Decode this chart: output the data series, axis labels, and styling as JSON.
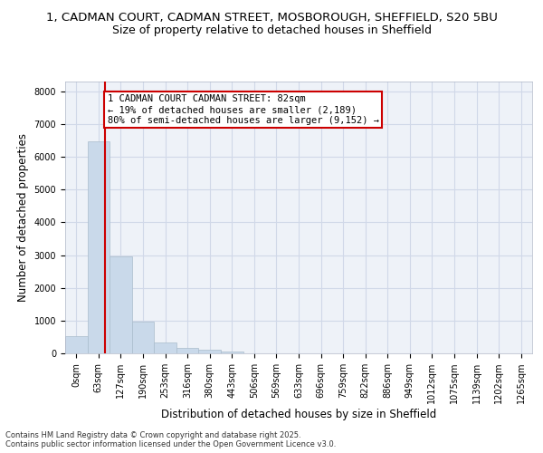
{
  "title_line1": "1, CADMAN COURT, CADMAN STREET, MOSBOROUGH, SHEFFIELD, S20 5BU",
  "title_line2": "Size of property relative to detached houses in Sheffield",
  "xlabel": "Distribution of detached houses by size in Sheffield",
  "ylabel": "Number of detached properties",
  "bar_labels": [
    "0sqm",
    "63sqm",
    "127sqm",
    "190sqm",
    "253sqm",
    "316sqm",
    "380sqm",
    "443sqm",
    "506sqm",
    "569sqm",
    "633sqm",
    "696sqm",
    "759sqm",
    "822sqm",
    "886sqm",
    "949sqm",
    "1012sqm",
    "1075sqm",
    "1139sqm",
    "1202sqm",
    "1265sqm"
  ],
  "bar_values": [
    530,
    6480,
    2970,
    960,
    330,
    155,
    105,
    60,
    0,
    0,
    0,
    0,
    0,
    0,
    0,
    0,
    0,
    0,
    0,
    0,
    0
  ],
  "bar_color": "#c9d9ea",
  "bar_edge_color": "#aabccc",
  "grid_color": "#d0d8e8",
  "background_color": "#eef2f8",
  "vline_x": 1.3,
  "vline_color": "#cc0000",
  "annotation_text": "1 CADMAN COURT CADMAN STREET: 82sqm\n← 19% of detached houses are smaller (2,189)\n80% of semi-detached houses are larger (9,152) →",
  "annotation_box_color": "#ffffff",
  "annotation_box_edge": "#cc0000",
  "ylim": [
    0,
    8300
  ],
  "yticks": [
    0,
    1000,
    2000,
    3000,
    4000,
    5000,
    6000,
    7000,
    8000
  ],
  "footer_line1": "Contains HM Land Registry data © Crown copyright and database right 2025.",
  "footer_line2": "Contains public sector information licensed under the Open Government Licence v3.0.",
  "title_fontsize": 9.5,
  "subtitle_fontsize": 9,
  "tick_fontsize": 7,
  "ylabel_fontsize": 8.5,
  "xlabel_fontsize": 8.5,
  "annotation_fontsize": 7.5
}
